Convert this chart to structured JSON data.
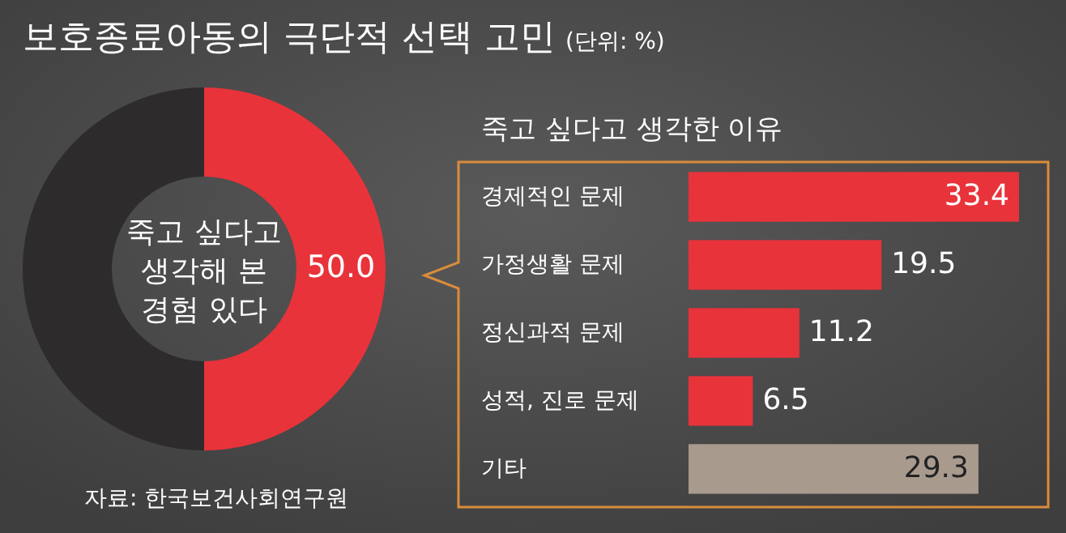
{
  "chart_data": [
    {
      "type": "donut",
      "title": "보호종료아동의 극단적 선택 고민",
      "subtitle": "(단위: %)",
      "categories": [
        "죽고 싶다고 생각해 본 경험 있다",
        null
      ],
      "values": [
        50.0,
        50.0
      ],
      "colors": [
        "#e8333a",
        "#2e2b2c"
      ],
      "value_labels": [
        "50.0",
        null
      ],
      "annotations": [
        "자료: 한국보건사회연구원"
      ]
    },
    {
      "type": "bar",
      "orientation": "horizontal",
      "title": "죽고 싶다고 생각한 이유",
      "categories": [
        "경제적인 문제",
        "가정생활 문제",
        "정신과적 문제",
        "성적, 진로 문제",
        "기타"
      ],
      "values": [
        33.4,
        19.5,
        11.2,
        6.5,
        29.3
      ],
      "colors": [
        "#e8333a",
        "#e8333a",
        "#e8333a",
        "#e8333a",
        "#a99a8e"
      ],
      "data_labels": true
    }
  ]
}
